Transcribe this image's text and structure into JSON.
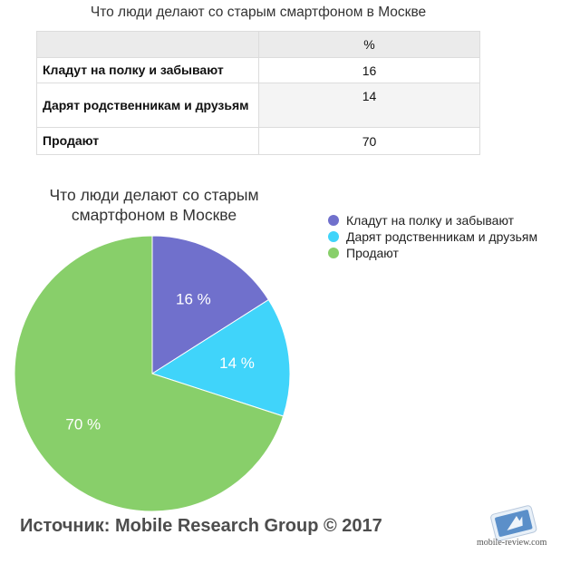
{
  "table": {
    "title": "Что люди делают со старым смартфоном в Москве",
    "header": [
      "",
      "%"
    ],
    "rows": [
      {
        "label": "Кладут на полку и забывают",
        "value": "16"
      },
      {
        "label": "Дарят родственникам и друзьям",
        "value": "14"
      },
      {
        "label": "Продают",
        "value": "70"
      }
    ]
  },
  "chart_data": {
    "type": "pie",
    "title": "Что люди делают со старым смартфоном в Москве",
    "categories": [
      "Кладут на полку и забывают",
      "Дарят родственникам и друзьям",
      "Продают"
    ],
    "values": [
      16,
      14,
      70
    ],
    "slice_labels": [
      "16 %",
      "14 %",
      "70 %"
    ],
    "colors": [
      "#7070cc",
      "#40d4fa",
      "#88cf6a"
    ],
    "legend_placement": "right"
  },
  "source": "Источник: Mobile Research Group © 2017",
  "watermark": {
    "text": "mobile-review.com",
    "icon": "mobile-review-logo-icon"
  }
}
